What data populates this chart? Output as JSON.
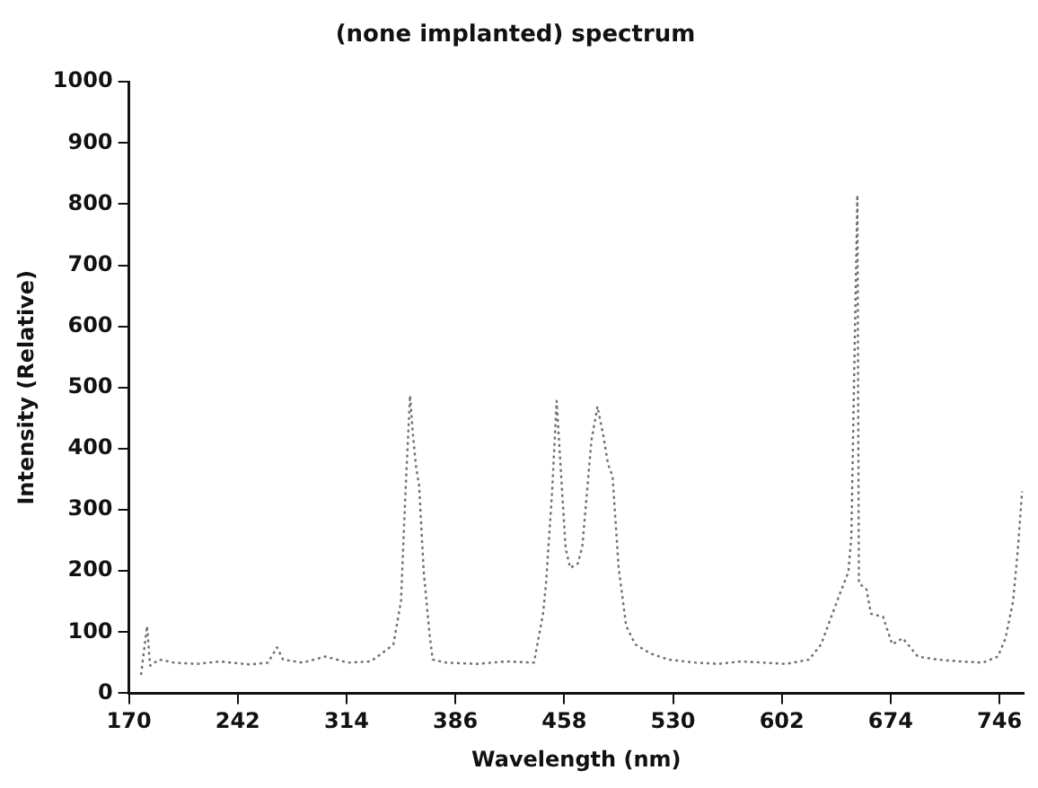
{
  "chart_data": {
    "type": "line",
    "title": "(none implanted) spectrum",
    "xlabel": "Wavelength (nm)",
    "ylabel": "Intensity (Relative)",
    "x": [
      178,
      182,
      184,
      190,
      200,
      215,
      230,
      250,
      262,
      268,
      272,
      285,
      300,
      315,
      330,
      340,
      345,
      350,
      353,
      356,
      358,
      360,
      362,
      365,
      369,
      371,
      380,
      400,
      420,
      438,
      444,
      446,
      450,
      453,
      456,
      459,
      462,
      467,
      470,
      476,
      480,
      484,
      487,
      490,
      494,
      499,
      505,
      515,
      527,
      545,
      560,
      575,
      590,
      605,
      620,
      628,
      634,
      640,
      646,
      648,
      650,
      652,
      653,
      658,
      661,
      669,
      675,
      682,
      692,
      705,
      720,
      735,
      745,
      750,
      755,
      758,
      761
    ],
    "series": [
      {
        "color": "#6e6e6e",
        "values": [
          30,
          110,
          45,
          55,
          50,
          48,
          52,
          47,
          50,
          75,
          55,
          50,
          60,
          50,
          52,
          70,
          80,
          150,
          330,
          487,
          420,
          370,
          340,
          200,
          95,
          55,
          50,
          48,
          52,
          50,
          130,
          180,
          330,
          478,
          355,
          236,
          205,
          212,
          240,
          413,
          469,
          420,
          375,
          355,
          206,
          110,
          80,
          65,
          55,
          50,
          48,
          52,
          50,
          48,
          55,
          80,
          120,
          160,
          198,
          255,
          540,
          815,
          180,
          170,
          130,
          125,
          80,
          90,
          60,
          55,
          52,
          50,
          60,
          90,
          150,
          230,
          330
        ]
      }
    ],
    "xlim": [
      170,
      762
    ],
    "xticks": [
      170,
      242,
      314,
      386,
      458,
      530,
      602,
      674,
      746
    ],
    "ylim": [
      0,
      1000
    ],
    "yticks": [
      0,
      100,
      200,
      300,
      400,
      500,
      600,
      700,
      800,
      900,
      1000
    ],
    "grid": false,
    "legend": false,
    "marker": "none",
    "line_style": "dotted"
  }
}
